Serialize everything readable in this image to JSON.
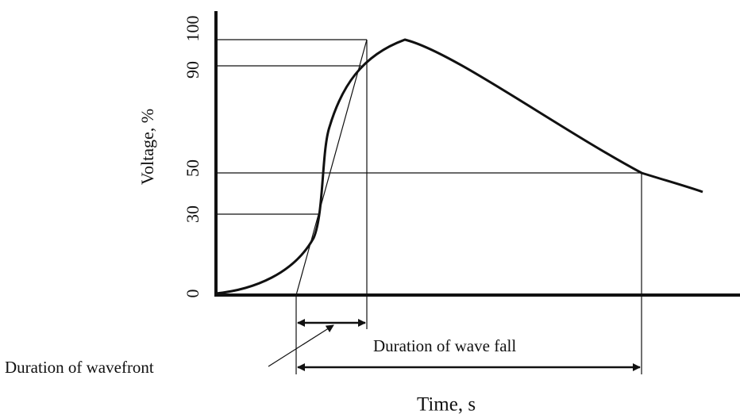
{
  "y_axis": {
    "label": "Voltage, %",
    "ticks": [
      0,
      30,
      50,
      90,
      100
    ]
  },
  "x_axis": {
    "label": "Time, s"
  },
  "annotations": {
    "front": "Duration of wavefront",
    "fall": "Duration of wave fall"
  }
}
